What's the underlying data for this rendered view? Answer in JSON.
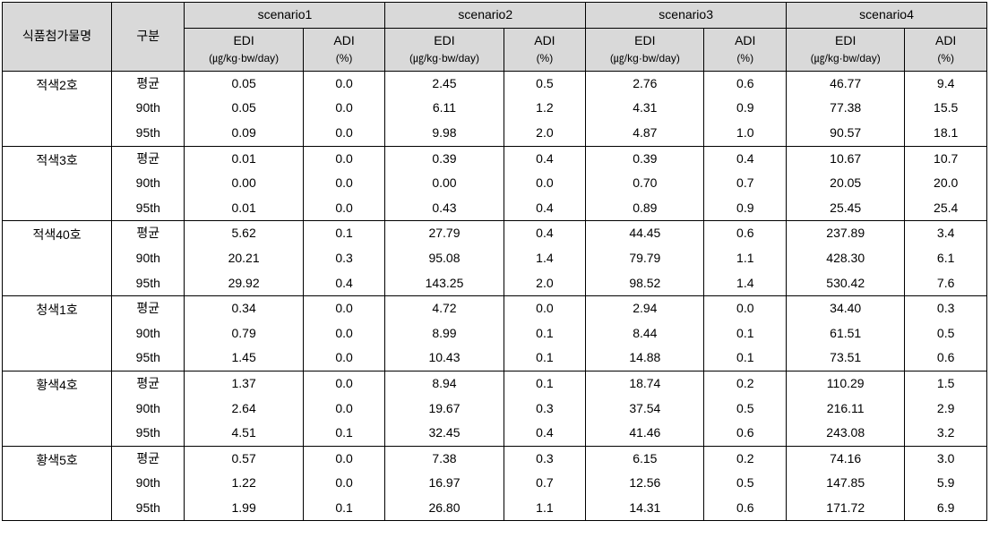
{
  "headers": {
    "name": "식품첨가물명",
    "sub": "구분",
    "scenarios": [
      "scenario1",
      "scenario2",
      "scenario3",
      "scenario4"
    ],
    "edi_label": "EDI",
    "edi_unit": "(㎍/kg·bw/day)",
    "adi_label": "ADI",
    "adi_unit": "(%)"
  },
  "sub_rows": [
    "평균",
    "90th",
    "95th"
  ],
  "groups": [
    {
      "name": "적색2호",
      "rows": [
        {
          "s1_edi": "0.05",
          "s1_adi": "0.0",
          "s2_edi": "2.45",
          "s2_adi": "0.5",
          "s3_edi": "2.76",
          "s3_adi": "0.6",
          "s4_edi": "46.77",
          "s4_adi": "9.4"
        },
        {
          "s1_edi": "0.05",
          "s1_adi": "0.0",
          "s2_edi": "6.11",
          "s2_adi": "1.2",
          "s3_edi": "4.31",
          "s3_adi": "0.9",
          "s4_edi": "77.38",
          "s4_adi": "15.5"
        },
        {
          "s1_edi": "0.09",
          "s1_adi": "0.0",
          "s2_edi": "9.98",
          "s2_adi": "2.0",
          "s3_edi": "4.87",
          "s3_adi": "1.0",
          "s4_edi": "90.57",
          "s4_adi": "18.1"
        }
      ]
    },
    {
      "name": "적색3호",
      "rows": [
        {
          "s1_edi": "0.01",
          "s1_adi": "0.0",
          "s2_edi": "0.39",
          "s2_adi": "0.4",
          "s3_edi": "0.39",
          "s3_adi": "0.4",
          "s4_edi": "10.67",
          "s4_adi": "10.7"
        },
        {
          "s1_edi": "0.00",
          "s1_adi": "0.0",
          "s2_edi": "0.00",
          "s2_adi": "0.0",
          "s3_edi": "0.70",
          "s3_adi": "0.7",
          "s4_edi": "20.05",
          "s4_adi": "20.0"
        },
        {
          "s1_edi": "0.01",
          "s1_adi": "0.0",
          "s2_edi": "0.43",
          "s2_adi": "0.4",
          "s3_edi": "0.89",
          "s3_adi": "0.9",
          "s4_edi": "25.45",
          "s4_adi": "25.4"
        }
      ]
    },
    {
      "name": "적색40호",
      "rows": [
        {
          "s1_edi": "5.62",
          "s1_adi": "0.1",
          "s2_edi": "27.79",
          "s2_adi": "0.4",
          "s3_edi": "44.45",
          "s3_adi": "0.6",
          "s4_edi": "237.89",
          "s4_adi": "3.4"
        },
        {
          "s1_edi": "20.21",
          "s1_adi": "0.3",
          "s2_edi": "95.08",
          "s2_adi": "1.4",
          "s3_edi": "79.79",
          "s3_adi": "1.1",
          "s4_edi": "428.30",
          "s4_adi": "6.1"
        },
        {
          "s1_edi": "29.92",
          "s1_adi": "0.4",
          "s2_edi": "143.25",
          "s2_adi": "2.0",
          "s3_edi": "98.52",
          "s3_adi": "1.4",
          "s4_edi": "530.42",
          "s4_adi": "7.6"
        }
      ]
    },
    {
      "name": "청색1호",
      "rows": [
        {
          "s1_edi": "0.34",
          "s1_adi": "0.0",
          "s2_edi": "4.72",
          "s2_adi": "0.0",
          "s3_edi": "2.94",
          "s3_adi": "0.0",
          "s4_edi": "34.40",
          "s4_adi": "0.3"
        },
        {
          "s1_edi": "0.79",
          "s1_adi": "0.0",
          "s2_edi": "8.99",
          "s2_adi": "0.1",
          "s3_edi": "8.44",
          "s3_adi": "0.1",
          "s4_edi": "61.51",
          "s4_adi": "0.5"
        },
        {
          "s1_edi": "1.45",
          "s1_adi": "0.0",
          "s2_edi": "10.43",
          "s2_adi": "0.1",
          "s3_edi": "14.88",
          "s3_adi": "0.1",
          "s4_edi": "73.51",
          "s4_adi": "0.6"
        }
      ]
    },
    {
      "name": "황색4호",
      "rows": [
        {
          "s1_edi": "1.37",
          "s1_adi": "0.0",
          "s2_edi": "8.94",
          "s2_adi": "0.1",
          "s3_edi": "18.74",
          "s3_adi": "0.2",
          "s4_edi": "110.29",
          "s4_adi": "1.5"
        },
        {
          "s1_edi": "2.64",
          "s1_adi": "0.0",
          "s2_edi": "19.67",
          "s2_adi": "0.3",
          "s3_edi": "37.54",
          "s3_adi": "0.5",
          "s4_edi": "216.11",
          "s4_adi": "2.9"
        },
        {
          "s1_edi": "4.51",
          "s1_adi": "0.1",
          "s2_edi": "32.45",
          "s2_adi": "0.4",
          "s3_edi": "41.46",
          "s3_adi": "0.6",
          "s4_edi": "243.08",
          "s4_adi": "3.2"
        }
      ]
    },
    {
      "name": "황색5호",
      "rows": [
        {
          "s1_edi": "0.57",
          "s1_adi": "0.0",
          "s2_edi": "7.38",
          "s2_adi": "0.3",
          "s3_edi": "6.15",
          "s3_adi": "0.2",
          "s4_edi": "74.16",
          "s4_adi": "3.0"
        },
        {
          "s1_edi": "1.22",
          "s1_adi": "0.0",
          "s2_edi": "16.97",
          "s2_adi": "0.7",
          "s3_edi": "12.56",
          "s3_adi": "0.5",
          "s4_edi": "147.85",
          "s4_adi": "5.9"
        },
        {
          "s1_edi": "1.99",
          "s1_adi": "0.1",
          "s2_edi": "26.80",
          "s2_adi": "1.1",
          "s3_edi": "14.31",
          "s3_adi": "0.6",
          "s4_edi": "171.72",
          "s4_adi": "6.9"
        }
      ]
    }
  ],
  "colors": {
    "header_bg": "#d9d9d9",
    "border": "#000000",
    "text": "#000000"
  }
}
